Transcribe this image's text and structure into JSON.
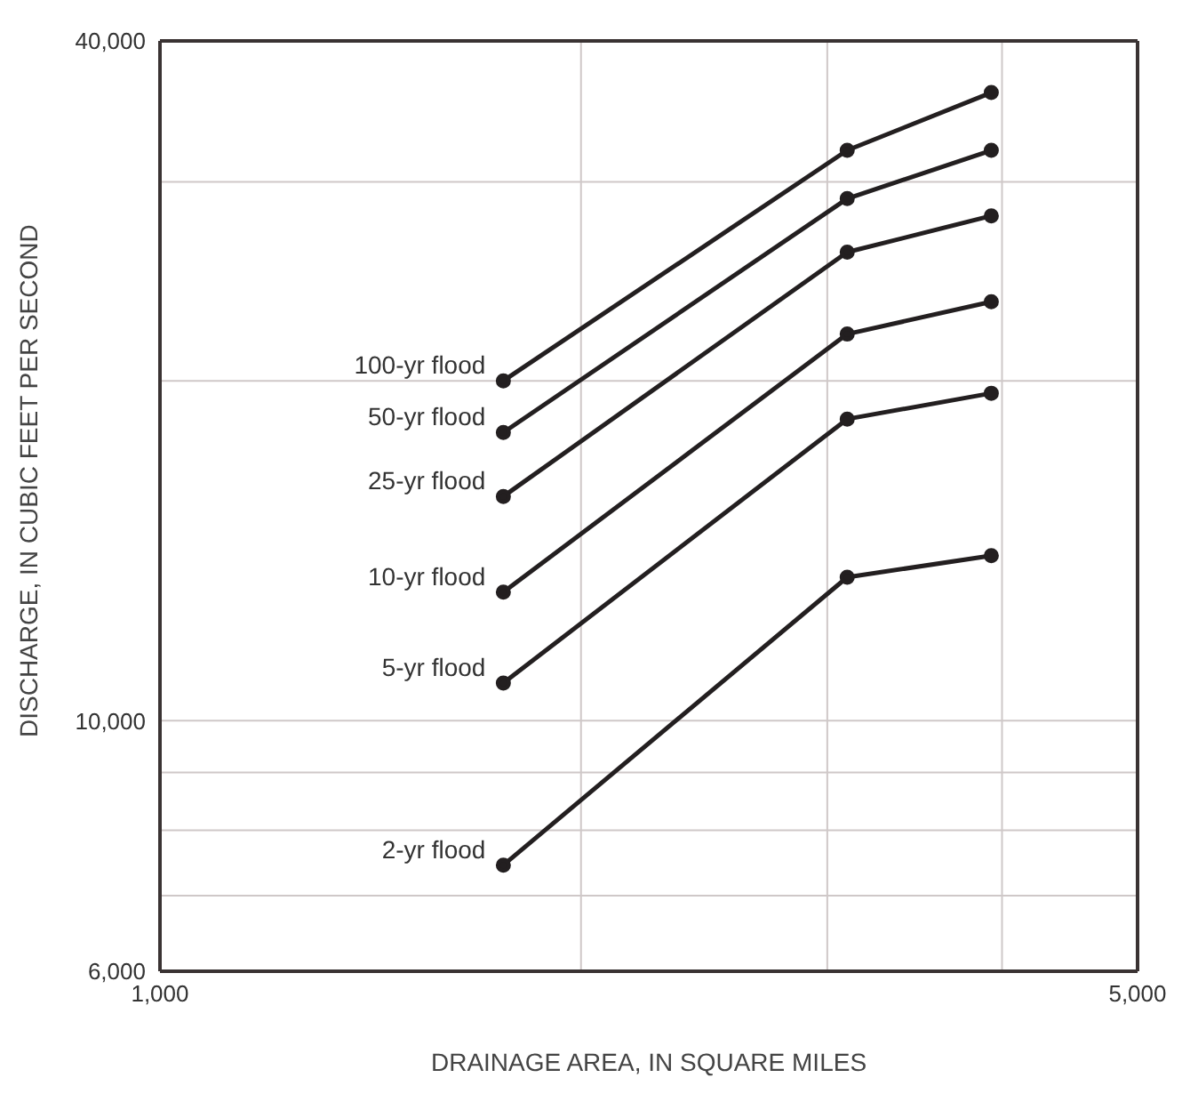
{
  "chart_data": {
    "type": "line",
    "xlabel": "DRAINAGE AREA, IN SQUARE MILES",
    "ylabel": "DISCHARGE, IN CUBIC FEET PER SECOND",
    "x": [
      1760,
      3100,
      3930
    ],
    "series": [
      {
        "name": "100-yr flood",
        "color": "#231f20",
        "values": [
          20000,
          32000,
          36000
        ]
      },
      {
        "name": "50-yr flood",
        "color": "#231f20",
        "values": [
          18000,
          29000,
          32000
        ]
      },
      {
        "name": "25-yr flood",
        "color": "#231f20",
        "values": [
          15800,
          26000,
          28000
        ]
      },
      {
        "name": "10-yr flood",
        "color": "#231f20",
        "values": [
          13000,
          22000,
          23500
        ]
      },
      {
        "name": "5-yr flood",
        "color": "#231f20",
        "values": [
          10800,
          18500,
          19500
        ]
      },
      {
        "name": "2-yr flood",
        "color": "#231f20",
        "values": [
          7450,
          13400,
          14000
        ]
      }
    ],
    "xlim": [
      1000,
      5000
    ],
    "xticks": [
      {
        "value": 1000,
        "label": "1,000"
      },
      {
        "value": 2000,
        "label": null
      },
      {
        "value": 3000,
        "label": null
      },
      {
        "value": 4000,
        "label": null
      },
      {
        "value": 5000,
        "label": "5,000"
      }
    ],
    "ylim": [
      6000,
      40000
    ],
    "yticks": [
      {
        "value": 6000,
        "label": "6,000"
      },
      {
        "value": 7000,
        "label": null
      },
      {
        "value": 8000,
        "label": null
      },
      {
        "value": 9000,
        "label": null
      },
      {
        "value": 10000,
        "label": "10,000"
      },
      {
        "value": 20000,
        "label": null
      },
      {
        "value": 30000,
        "label": null
      },
      {
        "value": 40000,
        "label": "40,000"
      }
    ],
    "log": "xy",
    "grid": true,
    "marker": "circle",
    "line_style": "solid"
  }
}
